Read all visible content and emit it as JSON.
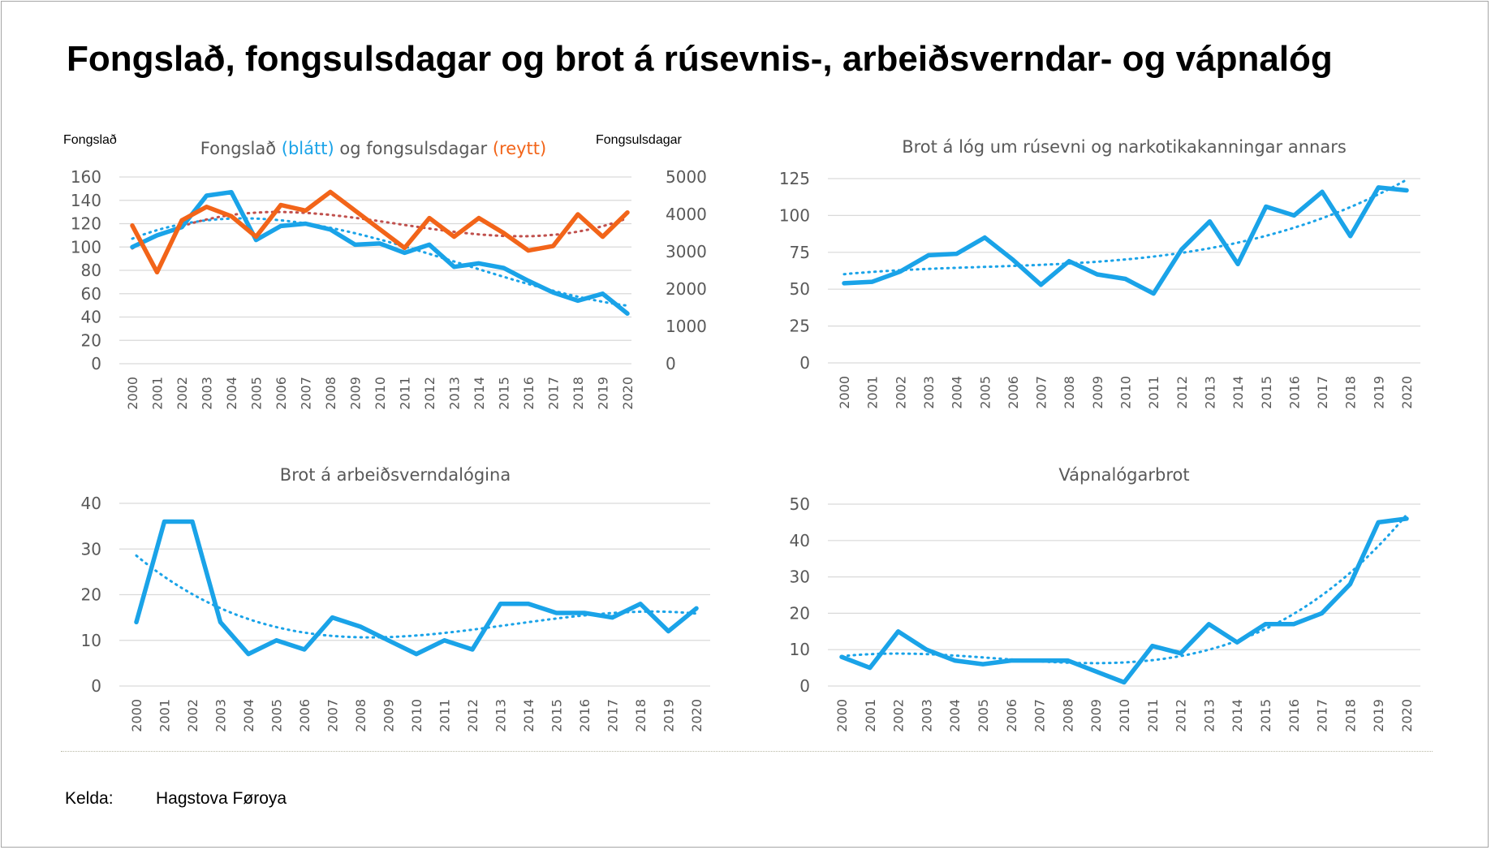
{
  "title": "Fongslað, fongsulsdagar og brot á rúsevnis-, arbeiðsverndar- og vápnalóg",
  "source": {
    "label": "Kelda:",
    "value": "Hagstova Føroya"
  },
  "colors": {
    "blue": "#1aa3e8",
    "orange": "#f26419",
    "trend_red": "#c0504d",
    "grid": "#d9d9d9",
    "text": "#595959"
  },
  "chart_data": [
    {
      "type": "line",
      "title_parts": [
        {
          "text": "Fongslað ",
          "color": "#595959"
        },
        {
          "text": "(blátt)",
          "color": "#1aa3e8"
        },
        {
          "text": " og fongsulsdagar ",
          "color": "#595959"
        },
        {
          "text": "(reytt)",
          "color": "#f26419"
        }
      ],
      "ylabel": "Fongslað",
      "y2label": "Fongsulsdagar",
      "ylim": [
        0,
        160
      ],
      "yticks": [
        0,
        20,
        40,
        60,
        80,
        100,
        120,
        140,
        160
      ],
      "y2lim": [
        0,
        5000
      ],
      "y2ticks": [
        0,
        1000,
        2000,
        3000,
        4000,
        5000
      ],
      "categories": [
        "2000",
        "2001",
        "2002",
        "2003",
        "2004",
        "2005",
        "2006",
        "2007",
        "2008",
        "2009",
        "2010",
        "2011",
        "2012",
        "2013",
        "2014",
        "2015",
        "2016",
        "2017",
        "2018",
        "2019",
        "2020"
      ],
      "series": [
        {
          "name": "Fongslað",
          "axis": "left",
          "color": "#1aa3e8",
          "trendline": "polynomial",
          "values": [
            100,
            110,
            117,
            144,
            147,
            106,
            118,
            120,
            115,
            102,
            103,
            95,
            102,
            83,
            86,
            82,
            71,
            61,
            54,
            60,
            43
          ]
        },
        {
          "name": "Fongsulsdagar",
          "axis": "right",
          "color": "#f26419",
          "trendline": "polynomial",
          "trend_color": "#c0504d",
          "values": [
            3700,
            2450,
            3840,
            4200,
            3950,
            3400,
            4250,
            4100,
            4600,
            4100,
            3600,
            3100,
            3900,
            3400,
            3900,
            3500,
            3030,
            3150,
            4000,
            3400,
            4050
          ]
        }
      ]
    },
    {
      "type": "line",
      "title": "Brot á lóg um rúsevni og narkotikakanningar annars",
      "ylim": [
        0,
        125
      ],
      "yticks": [
        0,
        25,
        50,
        75,
        100,
        125
      ],
      "categories": [
        "2000",
        "2001",
        "2002",
        "2003",
        "2004",
        "2005",
        "2006",
        "2007",
        "2008",
        "2009",
        "2010",
        "2011",
        "2012",
        "2013",
        "2014",
        "2015",
        "2016",
        "2017",
        "2018",
        "2019",
        "2020"
      ],
      "series": [
        {
          "name": "Brot á lóg um rúsevni",
          "color": "#1aa3e8",
          "trendline": "polynomial",
          "values": [
            54,
            55,
            62,
            73,
            74,
            85,
            70,
            53,
            69,
            60,
            57,
            47,
            77,
            96,
            67,
            106,
            100,
            116,
            86,
            119,
            117
          ]
        }
      ]
    },
    {
      "type": "line",
      "title": "Brot á arbeiðsverndalógina",
      "ylim": [
        0,
        40
      ],
      "yticks": [
        0,
        10,
        20,
        30,
        40
      ],
      "categories": [
        "2000",
        "2001",
        "2002",
        "2003",
        "2004",
        "2005",
        "2006",
        "2007",
        "2008",
        "2009",
        "2010",
        "2011",
        "2012",
        "2013",
        "2014",
        "2015",
        "2016",
        "2017",
        "2018",
        "2019",
        "2020"
      ],
      "series": [
        {
          "name": "Brot á arbeiðsverndalógina",
          "color": "#1aa3e8",
          "trendline": "polynomial",
          "values": [
            14,
            36,
            36,
            14,
            7,
            10,
            8,
            15,
            13,
            10,
            7,
            10,
            8,
            18,
            18,
            16,
            16,
            15,
            18,
            12,
            17
          ]
        }
      ]
    },
    {
      "type": "line",
      "title": "Vápnalógarbrot",
      "ylim": [
        0,
        50
      ],
      "yticks": [
        0,
        10,
        20,
        30,
        40,
        50
      ],
      "categories": [
        "2000",
        "2001",
        "2002",
        "2003",
        "2004",
        "2005",
        "2006",
        "2007",
        "2008",
        "2009",
        "2010",
        "2011",
        "2012",
        "2013",
        "2014",
        "2015",
        "2016",
        "2017",
        "2018",
        "2019",
        "2020"
      ],
      "series": [
        {
          "name": "Vápnalógarbrot",
          "color": "#1aa3e8",
          "trendline": "polynomial",
          "values": [
            8,
            5,
            15,
            10,
            7,
            6,
            7,
            7,
            7,
            4,
            1,
            11,
            9,
            17,
            12,
            17,
            17,
            20,
            28,
            45,
            46
          ]
        }
      ]
    }
  ]
}
